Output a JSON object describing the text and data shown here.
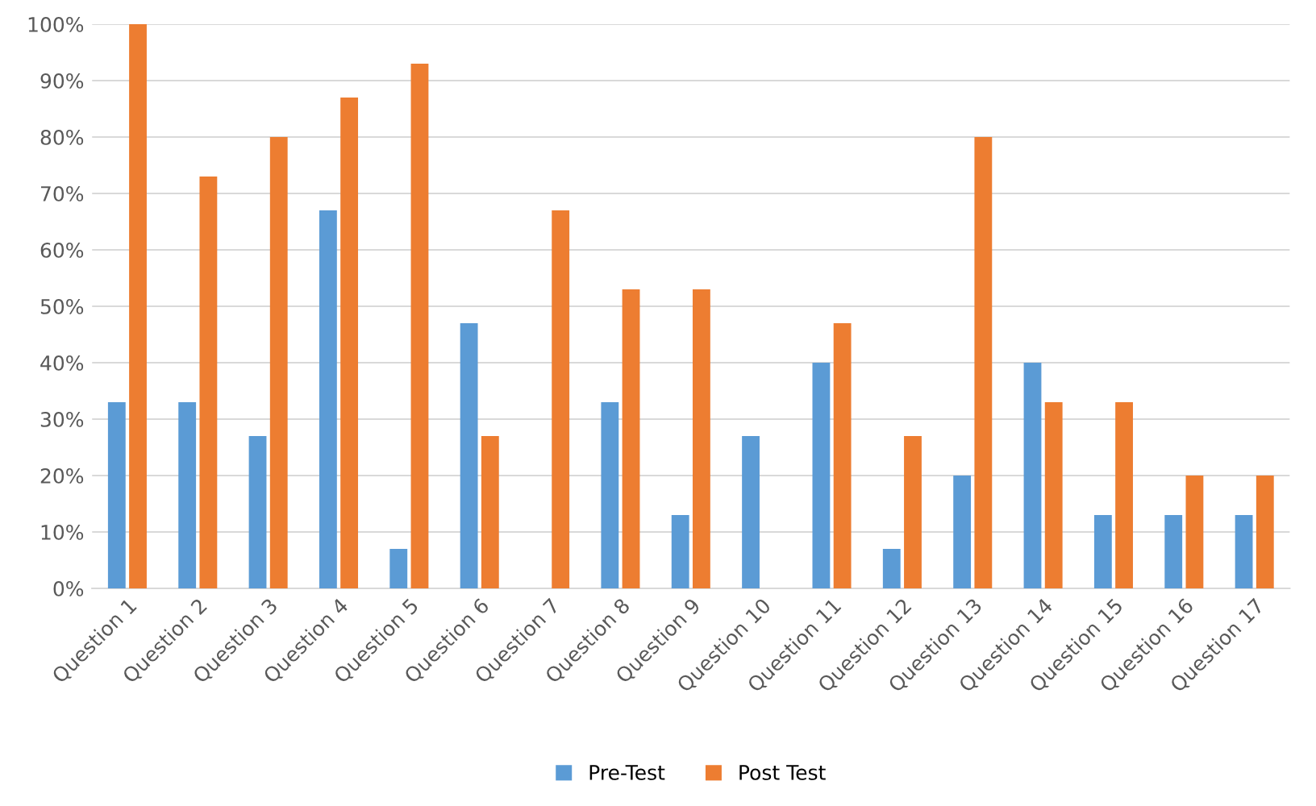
{
  "chart_data": {
    "type": "bar",
    "categories": [
      "Question 1",
      "Question 2",
      "Question 3",
      "Question 4",
      "Question 5",
      "Question 6",
      "Question 7",
      "Question 8",
      "Question 9",
      "Question 10",
      "Question 11",
      "Question 12",
      "Question 13",
      "Question 14",
      "Question 15",
      "Question 16",
      "Question 17"
    ],
    "series": [
      {
        "name": "Pre-Test",
        "color": "#5b9bd5",
        "values": [
          33,
          33,
          27,
          67,
          7,
          47,
          0,
          33,
          13,
          27,
          40,
          7,
          20,
          40,
          13,
          13,
          13
        ]
      },
      {
        "name": "Post Test",
        "color": "#ed7d31",
        "values": [
          100,
          73,
          80,
          87,
          93,
          27,
          67,
          53,
          53,
          0,
          47,
          27,
          80,
          33,
          33,
          20,
          20
        ]
      }
    ],
    "ylim": [
      0,
      100
    ],
    "yticks": [
      {
        "value": 0,
        "label": "0%"
      },
      {
        "value": 10,
        "label": "10%"
      },
      {
        "value": 20,
        "label": "20%"
      },
      {
        "value": 30,
        "label": "30%"
      },
      {
        "value": 40,
        "label": "40%"
      },
      {
        "value": 50,
        "label": "50%"
      },
      {
        "value": 60,
        "label": "60%"
      },
      {
        "value": 70,
        "label": "70%"
      },
      {
        "value": 80,
        "label": "80%"
      },
      {
        "value": 90,
        "label": "90%"
      },
      {
        "value": 100,
        "label": "100%"
      }
    ],
    "grid": "y",
    "legend": "bottom"
  }
}
